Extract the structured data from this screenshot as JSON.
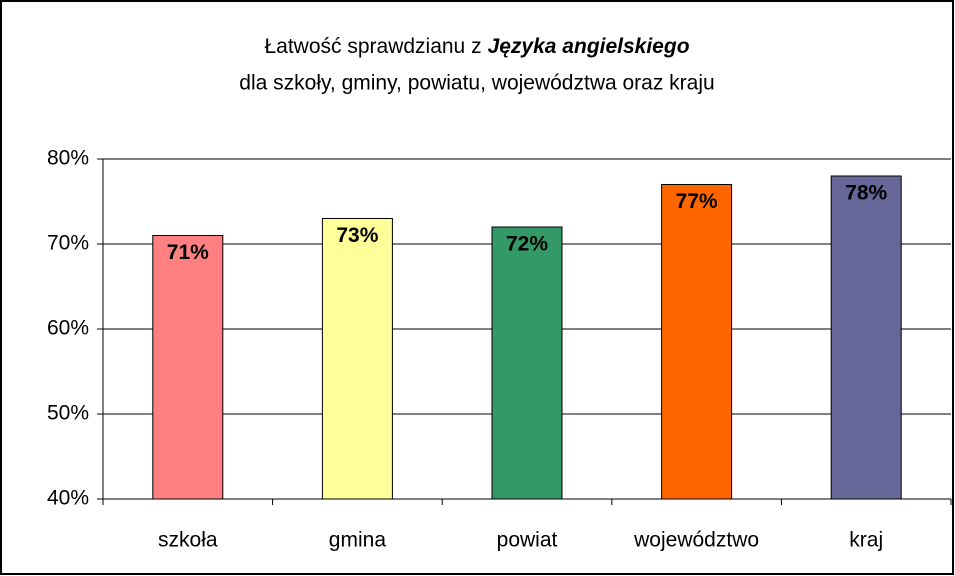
{
  "chart_data": {
    "type": "bar",
    "title": [
      "Łatwość sprawdzianu z",
      "Języka angielskiego",
      "dla szkoły, gminy, powiatu, województwa oraz kraju"
    ],
    "categories": [
      "szkoła",
      "gmina",
      "powiat",
      "województwo",
      "kraj"
    ],
    "values": [
      71,
      73,
      72,
      77,
      78
    ],
    "value_labels": [
      "71%",
      "73%",
      "72%",
      "77%",
      "78%"
    ],
    "colors": [
      "#ff8080",
      "#ffff99",
      "#339966",
      "#ff6600",
      "#666699"
    ],
    "ylim": [
      40,
      80
    ],
    "yticks": [
      {
        "value": 40,
        "label": "40%"
      },
      {
        "value": 50,
        "label": "50%"
      },
      {
        "value": 60,
        "label": "60%"
      },
      {
        "value": 70,
        "label": "70%"
      },
      {
        "value": 80,
        "label": "80%"
      }
    ],
    "grid": true
  }
}
